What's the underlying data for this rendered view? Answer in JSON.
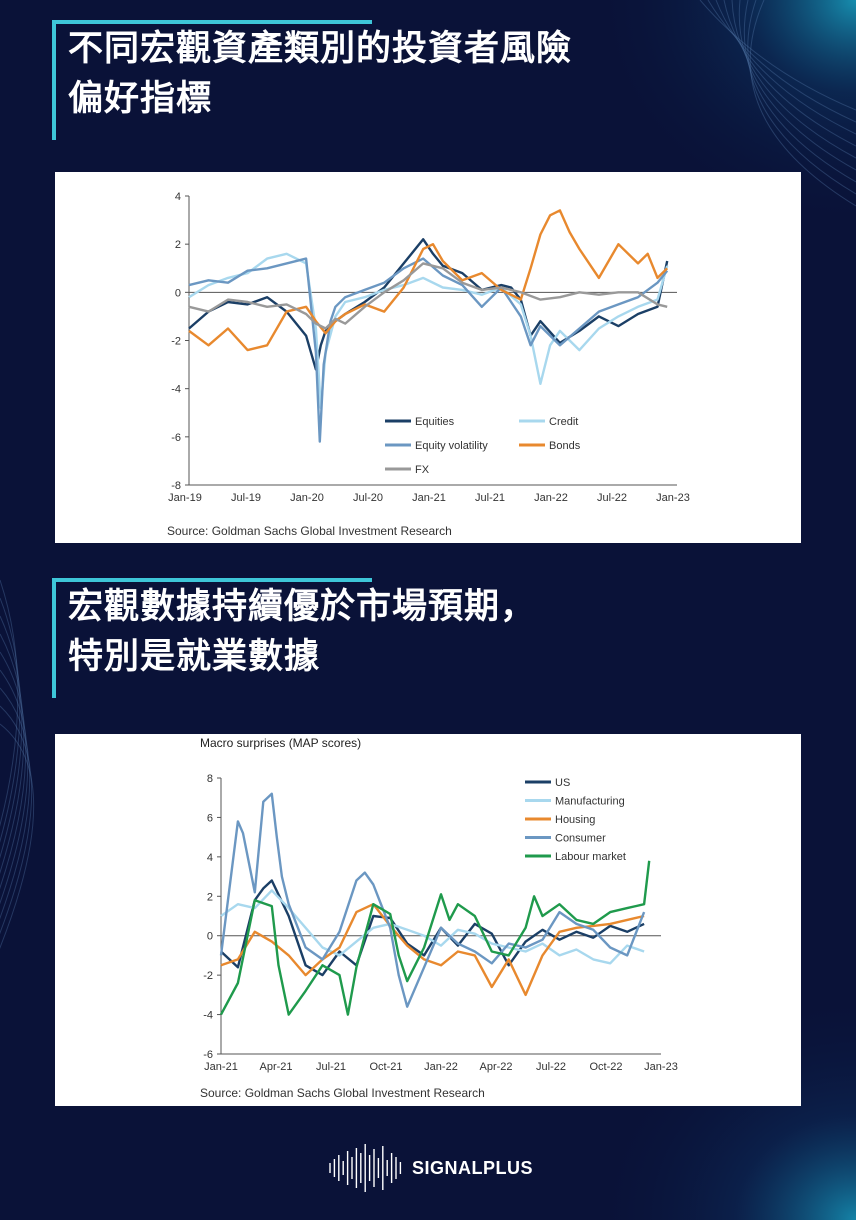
{
  "headings": {
    "first": [
      "不同宏觀資產類別的投資者風險",
      "偏好指標"
    ],
    "second": [
      "宏觀數據持續優於市場預期，",
      "特別是就業數據"
    ]
  },
  "brand": {
    "name": "SIGNALPLUS",
    "icon": "soundwave-logo-icon",
    "bg": "#0a1238",
    "accent": "#3ec6d8"
  },
  "chart_data": [
    {
      "type": "line",
      "title": "",
      "source": "Source: Goldman Sachs Global Investment Research",
      "ylim": [
        -8,
        4
      ],
      "yticks": [
        "4",
        "2",
        "0",
        "-2",
        "-4",
        "-6",
        "-8"
      ],
      "xticks": [
        "Jan-19",
        "Jul-19",
        "Jan-20",
        "Jul-20",
        "Jan-21",
        "Jul-21",
        "Jan-22",
        "Jul-22",
        "Jan-23"
      ],
      "xlim": [
        0,
        50
      ],
      "legend_position": "bottom-right",
      "series": [
        {
          "name": "Equities",
          "color": "#1b3f66",
          "x": [
            0,
            2,
            4,
            6,
            8,
            10,
            12,
            13,
            13.5,
            14,
            15,
            16,
            18,
            20,
            22,
            24,
            25,
            26,
            28,
            30,
            32,
            33,
            34,
            35,
            36,
            38,
            40,
            42,
            44,
            46,
            48,
            49
          ],
          "y": [
            -1.5,
            -0.8,
            -0.4,
            -0.5,
            -0.2,
            -0.8,
            -1.8,
            -3.2,
            -2.2,
            -1.6,
            -1.2,
            -0.9,
            -0.4,
            0.2,
            1.2,
            2.2,
            1.6,
            1.1,
            0.8,
            0.1,
            0.3,
            0.2,
            -0.3,
            -1.8,
            -1.2,
            -2.1,
            -1.6,
            -1.0,
            -1.4,
            -0.9,
            -0.6,
            1.3
          ]
        },
        {
          "name": "Credit",
          "color": "#a8d8ee",
          "x": [
            0,
            2,
            4,
            6,
            8,
            10,
            12,
            13,
            13.5,
            14,
            15,
            16,
            18,
            20,
            22,
            24,
            26,
            28,
            30,
            32,
            34,
            35,
            36,
            37,
            38,
            40,
            42,
            44,
            46,
            48,
            49
          ],
          "y": [
            -0.2,
            0.3,
            0.6,
            0.8,
            1.4,
            1.6,
            1.2,
            -1.5,
            -4.8,
            -2.5,
            -1.0,
            -0.4,
            -0.2,
            0.1,
            0.3,
            0.6,
            0.2,
            0.1,
            -0.1,
            0.2,
            -0.5,
            -1.8,
            -3.8,
            -2.2,
            -1.6,
            -2.4,
            -1.5,
            -1.0,
            -0.6,
            -0.3,
            1.1
          ]
        },
        {
          "name": "Equity volatility",
          "color": "#6b97c2",
          "x": [
            0,
            2,
            4,
            6,
            8,
            10,
            12,
            13,
            13.4,
            13.8,
            14.5,
            15,
            16,
            18,
            20,
            22,
            24,
            26,
            28,
            30,
            32,
            33,
            34,
            35,
            36,
            38,
            40,
            42,
            44,
            46,
            48,
            49
          ],
          "y": [
            0.3,
            0.5,
            0.4,
            0.9,
            1.0,
            1.2,
            1.4,
            -2.5,
            -6.2,
            -3.0,
            -1.2,
            -0.6,
            -0.2,
            0.1,
            0.4,
            1.0,
            1.4,
            0.7,
            0.3,
            -0.6,
            0.2,
            -0.4,
            -1.0,
            -2.2,
            -1.4,
            -2.2,
            -1.5,
            -0.8,
            -0.5,
            -0.2,
            0.4,
            0.9
          ]
        },
        {
          "name": "Bonds",
          "color": "#e8892e",
          "x": [
            0,
            2,
            4,
            6,
            8,
            10,
            12,
            13,
            14,
            15,
            16,
            18,
            20,
            22,
            24,
            25,
            26,
            28,
            30,
            32,
            34,
            35,
            36,
            37,
            38,
            39,
            40,
            42,
            44,
            46,
            47,
            48,
            49
          ],
          "y": [
            -1.6,
            -2.2,
            -1.5,
            -2.4,
            -2.2,
            -0.8,
            -0.6,
            -1.2,
            -1.7,
            -1.2,
            -0.9,
            -0.5,
            -0.8,
            0.2,
            1.8,
            2.0,
            1.3,
            0.5,
            0.8,
            0.1,
            -0.3,
            1.0,
            2.4,
            3.2,
            3.4,
            2.5,
            1.8,
            0.6,
            2.0,
            1.2,
            1.6,
            0.6,
            1.0
          ]
        },
        {
          "name": "FX",
          "color": "#999999",
          "x": [
            0,
            2,
            4,
            6,
            8,
            10,
            12,
            13,
            14,
            15,
            16,
            18,
            20,
            22,
            24,
            26,
            28,
            30,
            32,
            34,
            36,
            38,
            40,
            42,
            44,
            46,
            48,
            49
          ],
          "y": [
            -0.6,
            -0.8,
            -0.3,
            -0.4,
            -0.6,
            -0.5,
            -0.9,
            -1.3,
            -1.5,
            -1.1,
            -1.3,
            -0.6,
            0.0,
            0.5,
            1.2,
            1.0,
            0.4,
            0.1,
            0.2,
            0.0,
            -0.3,
            -0.2,
            0.0,
            -0.1,
            0.0,
            0.0,
            -0.5,
            -0.6
          ]
        }
      ]
    },
    {
      "type": "line",
      "title": "Macro surprises (MAP scores)",
      "source": "Source: Goldman Sachs Global Investment Research",
      "ylim": [
        -6,
        8
      ],
      "yticks": [
        "8",
        "6",
        "4",
        "2",
        "0",
        "-2",
        "-4",
        "-6"
      ],
      "xticks": [
        "Jan-21",
        "Apr-21",
        "Jul-21",
        "Oct-21",
        "Jan-22",
        "Apr-22",
        "Jul-22",
        "Oct-22",
        "Jan-23"
      ],
      "xlim": [
        0,
        26
      ],
      "legend_position": "top-right",
      "series": [
        {
          "name": "US",
          "color": "#1b3f66",
          "x": [
            0,
            1,
            2,
            2.5,
            3,
            4,
            5,
            6,
            7,
            8,
            9,
            10,
            11,
            12,
            13,
            14,
            15,
            16,
            17,
            18,
            19,
            20,
            21,
            22,
            23,
            24,
            25
          ],
          "y": [
            -0.8,
            -1.6,
            1.8,
            2.4,
            2.8,
            1.0,
            -1.5,
            -2.0,
            -0.8,
            -1.5,
            1.0,
            0.9,
            -0.4,
            -1.0,
            0.4,
            -0.5,
            0.6,
            0.1,
            -1.5,
            -0.3,
            0.3,
            -0.2,
            0.2,
            -0.1,
            0.5,
            0.2,
            0.6
          ]
        },
        {
          "name": "Manufacturing",
          "color": "#a8d8ee",
          "x": [
            0,
            1,
            2,
            3,
            4,
            5,
            6,
            7,
            8,
            9,
            10,
            11,
            12,
            13,
            14,
            15,
            16,
            17,
            18,
            19,
            20,
            21,
            22,
            23,
            24,
            25
          ],
          "y": [
            1.0,
            1.6,
            1.4,
            2.3,
            1.4,
            0.4,
            -0.6,
            -1.0,
            -0.3,
            0.4,
            0.6,
            0.3,
            0.0,
            -0.5,
            0.3,
            0.1,
            -0.4,
            -0.6,
            -0.8,
            -0.4,
            -1.0,
            -0.7,
            -1.2,
            -1.4,
            -0.5,
            -0.8
          ]
        },
        {
          "name": "Housing",
          "color": "#e8892e",
          "x": [
            0,
            1,
            2,
            3,
            4,
            5,
            6,
            7,
            8,
            9,
            10,
            11,
            12,
            13,
            14,
            15,
            16,
            17,
            18,
            19,
            20,
            21,
            22,
            23,
            24,
            25
          ],
          "y": [
            -1.5,
            -1.2,
            0.2,
            -0.3,
            -1.0,
            -2.0,
            -1.2,
            -0.6,
            1.2,
            1.6,
            0.5,
            -0.5,
            -1.2,
            -1.5,
            -0.8,
            -1.0,
            -2.6,
            -1.2,
            -3.0,
            -1.0,
            0.2,
            0.4,
            0.5,
            0.6,
            0.8,
            1.0
          ]
        },
        {
          "name": "Consumer",
          "color": "#6b97c2",
          "x": [
            0,
            1,
            1.3,
            2,
            2.5,
            3,
            3.3,
            3.6,
            4,
            5,
            6,
            7,
            8,
            8.5,
            9,
            10,
            10.5,
            11,
            12,
            13,
            14,
            15,
            16,
            17,
            18,
            19,
            20,
            21,
            22,
            23,
            24,
            25
          ],
          "y": [
            -1.0,
            5.8,
            5.2,
            2.2,
            6.8,
            7.2,
            5.0,
            3.0,
            1.6,
            -0.6,
            -1.2,
            0.2,
            2.8,
            3.2,
            2.6,
            0.4,
            -2.0,
            -3.6,
            -1.6,
            0.4,
            -0.4,
            -0.8,
            -1.4,
            -0.4,
            -0.6,
            -0.2,
            1.2,
            0.6,
            0.3,
            -0.6,
            -1.0,
            1.2
          ]
        },
        {
          "name": "Labour market",
          "color": "#1f9a4c",
          "x": [
            0,
            1,
            2,
            3,
            3.4,
            4,
            5,
            6,
            7,
            7.5,
            8,
            9,
            10,
            10.5,
            11,
            12,
            13,
            13.5,
            14,
            15,
            16,
            17,
            18,
            18.5,
            19,
            20,
            21,
            22,
            23,
            24,
            25,
            25.3
          ],
          "y": [
            -4.0,
            -2.4,
            1.8,
            1.5,
            -1.5,
            -4.0,
            -2.8,
            -1.5,
            -2.0,
            -4.0,
            -1.6,
            1.6,
            1.1,
            -1.0,
            -2.3,
            -0.6,
            2.1,
            0.8,
            1.6,
            1.0,
            -0.8,
            -1.0,
            0.4,
            2.0,
            1.0,
            1.6,
            0.8,
            0.6,
            1.2,
            1.4,
            1.6,
            3.8
          ]
        }
      ]
    }
  ]
}
